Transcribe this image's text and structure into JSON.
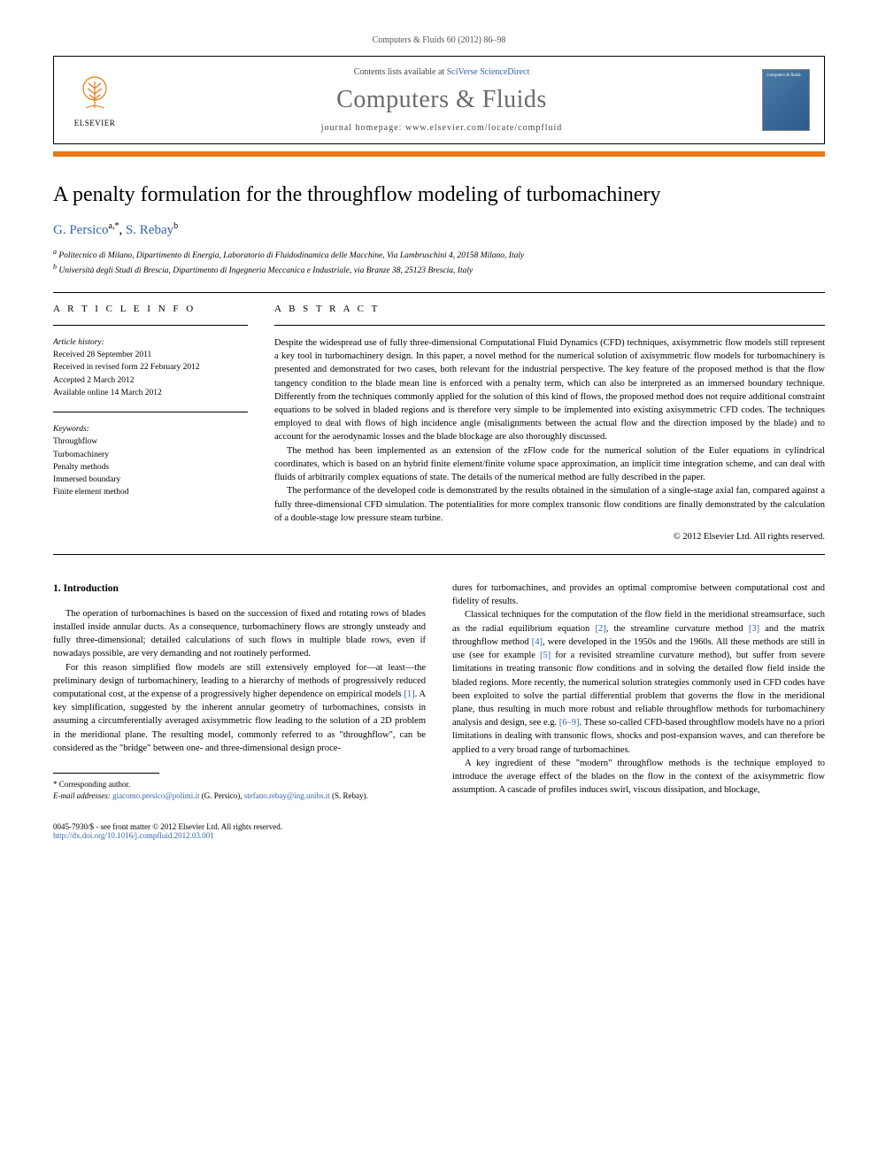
{
  "journal_ref": "Computers & Fluids 60 (2012) 86–98",
  "header": {
    "elsevier": "ELSEVIER",
    "contents_prefix": "Contents lists available at ",
    "sd_link": "SciVerse ScienceDirect",
    "journal_name": "Computers & Fluids",
    "homepage_prefix": "journal homepage: ",
    "homepage_url": "www.elsevier.com/locate/compfluid",
    "cover_text": "computers & fluids"
  },
  "title": "A penalty formulation for the throughflow modeling of turbomachinery",
  "authors_html": "G. Persico",
  "author1_sup": "a,*",
  "author2": "S. Rebay",
  "author2_sup": "b",
  "affiliations": {
    "a": "Politecnico di Milano, Dipartimento di Energia, Laboratorio di Fluidodinamica delle Macchine, Via Lambruschini 4, 20158 Milano, Italy",
    "b": "Università degli Studi di Brescia, Dipartimento di Ingegneria Meccanica e Industriale, via Branze 38, 25123 Brescia, Italy"
  },
  "info": {
    "label": "A R T I C L E   I N F O",
    "history_heading": "Article history:",
    "history": [
      "Received 28 September 2011",
      "Received in revised form 22 February 2012",
      "Accepted 2 March 2012",
      "Available online 14 March 2012"
    ],
    "keywords_heading": "Keywords:",
    "keywords": [
      "Throughflow",
      "Turbomachinery",
      "Penalty methods",
      "Immersed boundary",
      "Finite element method"
    ]
  },
  "abstract": {
    "label": "A B S T R A C T",
    "paragraphs": [
      "Despite the widespread use of fully three-dimensional Computational Fluid Dynamics (CFD) techniques, axisymmetric flow models still represent a key tool in turbomachinery design. In this paper, a novel method for the numerical solution of axisymmetric flow models for turbomachinery is presented and demonstrated for two cases, both relevant for the industrial perspective. The key feature of the proposed method is that the flow tangency condition to the blade mean line is enforced with a penalty term, which can also be interpreted as an immersed boundary technique. Differently from the techniques commonly applied for the solution of this kind of flows, the proposed method does not require additional constraint equations to be solved in bladed regions and is therefore very simple to be implemented into existing axisymmetric CFD codes. The techniques employed to deal with flows of high incidence angle (misalignments between the actual flow and the direction imposed by the blade) and to account for the aerodynamic losses and the blade blockage are also thoroughly discussed.",
      "The method has been implemented as an extension of the zFlow code for the numerical solution of the Euler equations in cylindrical coordinates, which is based on an hybrid finite element/finite volume space approximation, an implicit time integration scheme, and can deal with fluids of arbitrarily complex equations of state. The details of the numerical method are fully described in the paper.",
      "The performance of the developed code is demonstrated by the results obtained in the simulation of a single-stage axial fan, compared against a fully three-dimensional CFD simulation. The potentialities for more complex transonic flow conditions are finally demonstrated by the calculation of a double-stage low pressure steam turbine."
    ],
    "copyright": "© 2012 Elsevier Ltd. All rights reserved."
  },
  "intro": {
    "heading": "1. Introduction",
    "left_paragraphs": [
      "The operation of turbomachines is based on the succession of fixed and rotating rows of blades installed inside annular ducts. As a consequence, turbomachinery flows are strongly unsteady and fully three-dimensional; detailed calculations of such flows in multiple blade rows, even if nowadays possible, are very demanding and not routinely performed.",
      "For this reason simplified flow models are still extensively employed for—at least—the preliminary design of turbomachinery, leading to a hierarchy of methods of progressively reduced computational cost, at the expense of a progressively higher dependence on empirical models [1]. A key simplification, suggested by the inherent annular geometry of turbomachines, consists in assuming a circumferentially averaged axisymmetric flow leading to the solution of a 2D problem in the meridional plane. The resulting model, commonly referred to as \"throughflow\", can be considered as the \"bridge\" between one- and three-dimensional design proce-"
    ],
    "right_paragraphs": [
      "dures for turbomachines, and provides an optimal compromise between computational cost and fidelity of results.",
      "Classical techniques for the computation of the flow field in the meridional streamsurface, such as the radial equilibrium equation [2], the streamline curvature method [3] and the matrix throughflow method [4], were developed in the 1950s and the 1960s. All these methods are still in use (see for example [5] for a revisited streamline curvature method), but suffer from severe limitations in treating transonic flow conditions and in solving the detailed flow field inside the bladed regions. More recently, the numerical solution strategies commonly used in CFD codes have been exploited to solve the partial differential problem that governs the flow in the meridional plane, thus resulting in much more robust and reliable throughflow methods for turbomachinery analysis and design, see e.g. [6–9]. These so-called CFD-based throughflow models have no a priori limitations in dealing with transonic flows, shocks and post-expansion waves, and can therefore be applied to a very broad range of turbomachines.",
      "A key ingredient of these \"modern\" throughflow methods is the technique employed to introduce the average effect of the blades on the flow in the context of the axisymmetric flow assumption. A cascade of profiles induces swirl, viscous dissipation, and blockage,"
    ]
  },
  "footnote": {
    "corr": "* Corresponding author.",
    "email_label": "E-mail addresses:",
    "email1": "giacomo.persico@polimi.it",
    "email1_who": "(G. Persico),",
    "email2": "stefano.rebay@ing.unibs.it",
    "email2_who": "(S. Rebay)."
  },
  "footer": {
    "issn": "0045-7930/$ - see front matter © 2012 Elsevier Ltd. All rights reserved.",
    "doi_label": "",
    "doi": "http://dx.doi.org/10.1016/j.compfluid.2012.03.001"
  },
  "colors": {
    "orange": "#e67817",
    "link": "#3366aa",
    "journal_gray": "#6a6a6a"
  }
}
